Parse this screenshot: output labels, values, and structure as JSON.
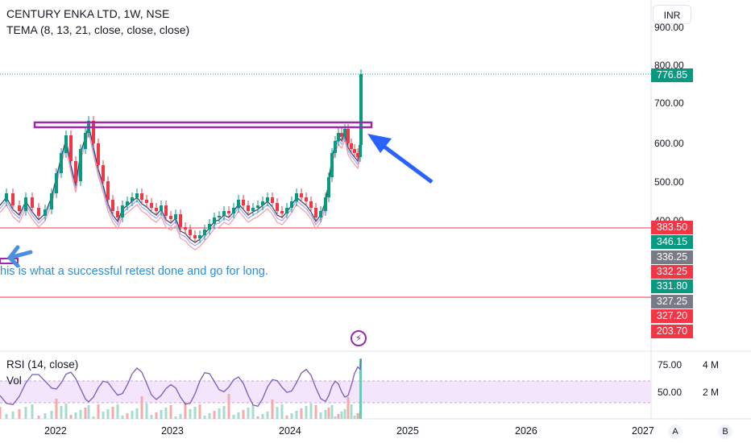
{
  "header": {
    "title": "CENTURY ENKA LTD, 1W, NSE",
    "indicator": "TEMA (8, 13, 21, close, close, close)",
    "currency": "INR"
  },
  "price_axis": {
    "ticks": [
      "700.00",
      "600.00",
      "500.00",
      "400.00"
    ],
    "partial_ticks": [
      "900.00",
      "800.00"
    ]
  },
  "price_tags": [
    {
      "label": "776.85",
      "color": "#089981"
    },
    {
      "label": "383.50",
      "color": "#f23645"
    },
    {
      "label": "346.15",
      "color": "#089981"
    },
    {
      "label": "336.25",
      "color": "#787b86"
    },
    {
      "label": "332.25",
      "color": "#f23645"
    },
    {
      "label": "331.80",
      "color": "#089981"
    },
    {
      "label": "327.25",
      "color": "#787b86"
    },
    {
      "label": "327.20",
      "color": "#f23645"
    },
    {
      "label": "203.70",
      "color": "#f23645"
    }
  ],
  "time_axis": {
    "labels": [
      "2022",
      "2023",
      "2024",
      "2025",
      "2026",
      "2027"
    ]
  },
  "annotation": {
    "text": "his is what a successful retest done and go for long."
  },
  "rsi_pane": {
    "label": "RSI (14, close)",
    "vol_label": "Vol",
    "ticks": [
      "75.00",
      "50.00"
    ],
    "vol_ticks": [
      "4 M",
      "2 M"
    ]
  },
  "buttons": {
    "a": "A",
    "b": "B"
  },
  "colors": {
    "up": "#089981",
    "down": "#f23645",
    "box": "#9c27b0",
    "arrow": "#2962ff",
    "rsi": "#7e57c2"
  }
}
